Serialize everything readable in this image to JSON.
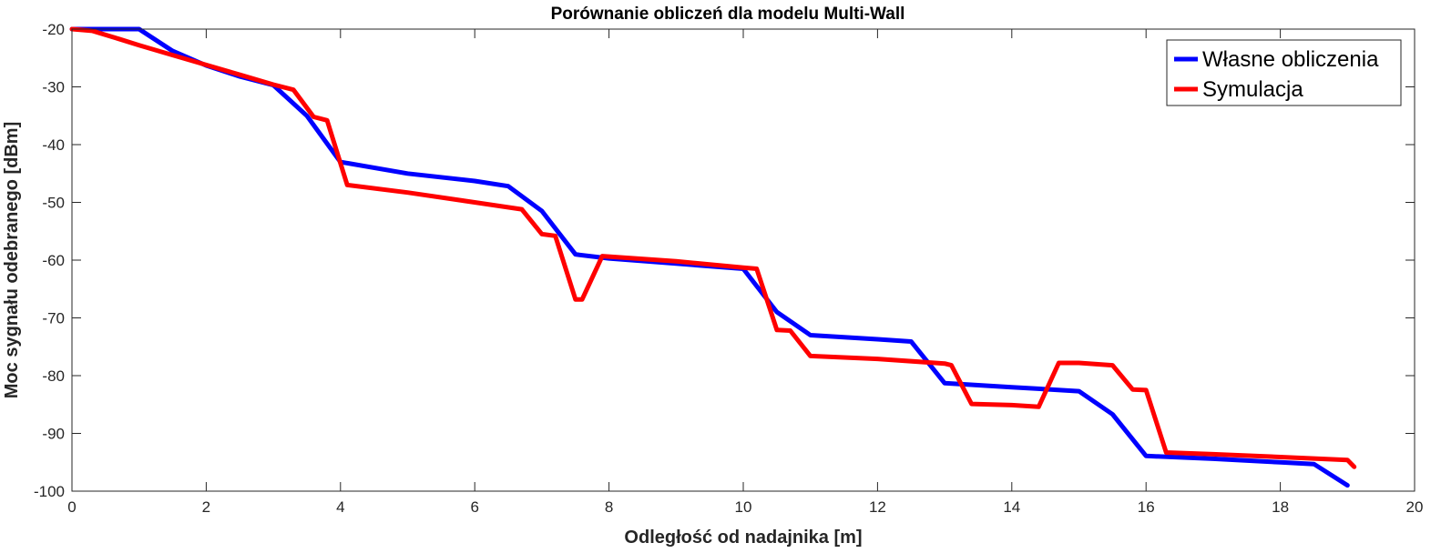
{
  "chart_data": {
    "type": "line",
    "title": "Porównanie obliczeń dla modelu Multi-Wall",
    "xlabel": "Odległość od nadajnika [m]",
    "ylabel": "Moc sygnału odebranego [dBm]",
    "xlim": [
      0,
      20
    ],
    "ylim": [
      -100,
      -20
    ],
    "xticks": [
      0,
      2,
      4,
      6,
      8,
      10,
      12,
      14,
      16,
      18,
      20
    ],
    "yticks": [
      -20,
      -30,
      -40,
      -50,
      -60,
      -70,
      -80,
      -90,
      -100
    ],
    "xtick_labels": [
      "0",
      "2",
      "4",
      "6",
      "8",
      "10",
      "12",
      "14",
      "16",
      "18",
      "20"
    ],
    "ytick_labels": [
      "-20",
      "-30",
      "-40",
      "-50",
      "-60",
      "-70",
      "-80",
      "-90",
      "-100"
    ],
    "grid": false,
    "legend_position": "top-right",
    "series": [
      {
        "name": "Własne obliczenia",
        "color": "#0000ff",
        "x": [
          0,
          1,
          1.5,
          2,
          2.5,
          3,
          3.5,
          4,
          5,
          6,
          6.5,
          7,
          7.5,
          8,
          9,
          10,
          10.5,
          11,
          12,
          12.5,
          13,
          14,
          15,
          15.5,
          16,
          17,
          18,
          18.5,
          19
        ],
        "y": [
          -20,
          -20,
          -23.8,
          -26.3,
          -28.2,
          -29.7,
          -35,
          -43,
          -45,
          -46.3,
          -47.2,
          -51.5,
          -59,
          -59.7,
          -60.6,
          -61.5,
          -69,
          -73,
          -73.7,
          -74.1,
          -81.3,
          -82,
          -82.7,
          -86.7,
          -93.9,
          -94.4,
          -95,
          -95.3,
          -99
        ]
      },
      {
        "name": "Symulacja",
        "color": "#ff0000",
        "x": [
          0,
          0.3,
          0.7,
          1,
          1.5,
          2,
          2.5,
          3,
          3.3,
          3.6,
          3.8,
          4.1,
          5,
          6,
          6.7,
          7,
          7.2,
          7.5,
          7.6,
          7.9,
          9,
          10,
          10.2,
          10.5,
          10.7,
          11,
          12,
          13,
          13.1,
          13.4,
          14,
          14.4,
          14.7,
          15,
          15.5,
          15.8,
          16,
          16.3,
          17,
          18,
          19,
          19.1
        ],
        "y": [
          -20,
          -20.3,
          -21.7,
          -22.8,
          -24.5,
          -26.2,
          -27.9,
          -29.6,
          -30.5,
          -35.2,
          -35.8,
          -47,
          -48.3,
          -50,
          -51.2,
          -55.5,
          -55.8,
          -66.8,
          -66.8,
          -59.3,
          -60.2,
          -61.3,
          -61.5,
          -72.1,
          -72.2,
          -76.6,
          -77.1,
          -77.9,
          -78.2,
          -84.9,
          -85.1,
          -85.4,
          -77.8,
          -77.8,
          -78.2,
          -82.4,
          -82.5,
          -93.3,
          -93.6,
          -94.1,
          -94.6,
          -95.8
        ]
      }
    ]
  }
}
